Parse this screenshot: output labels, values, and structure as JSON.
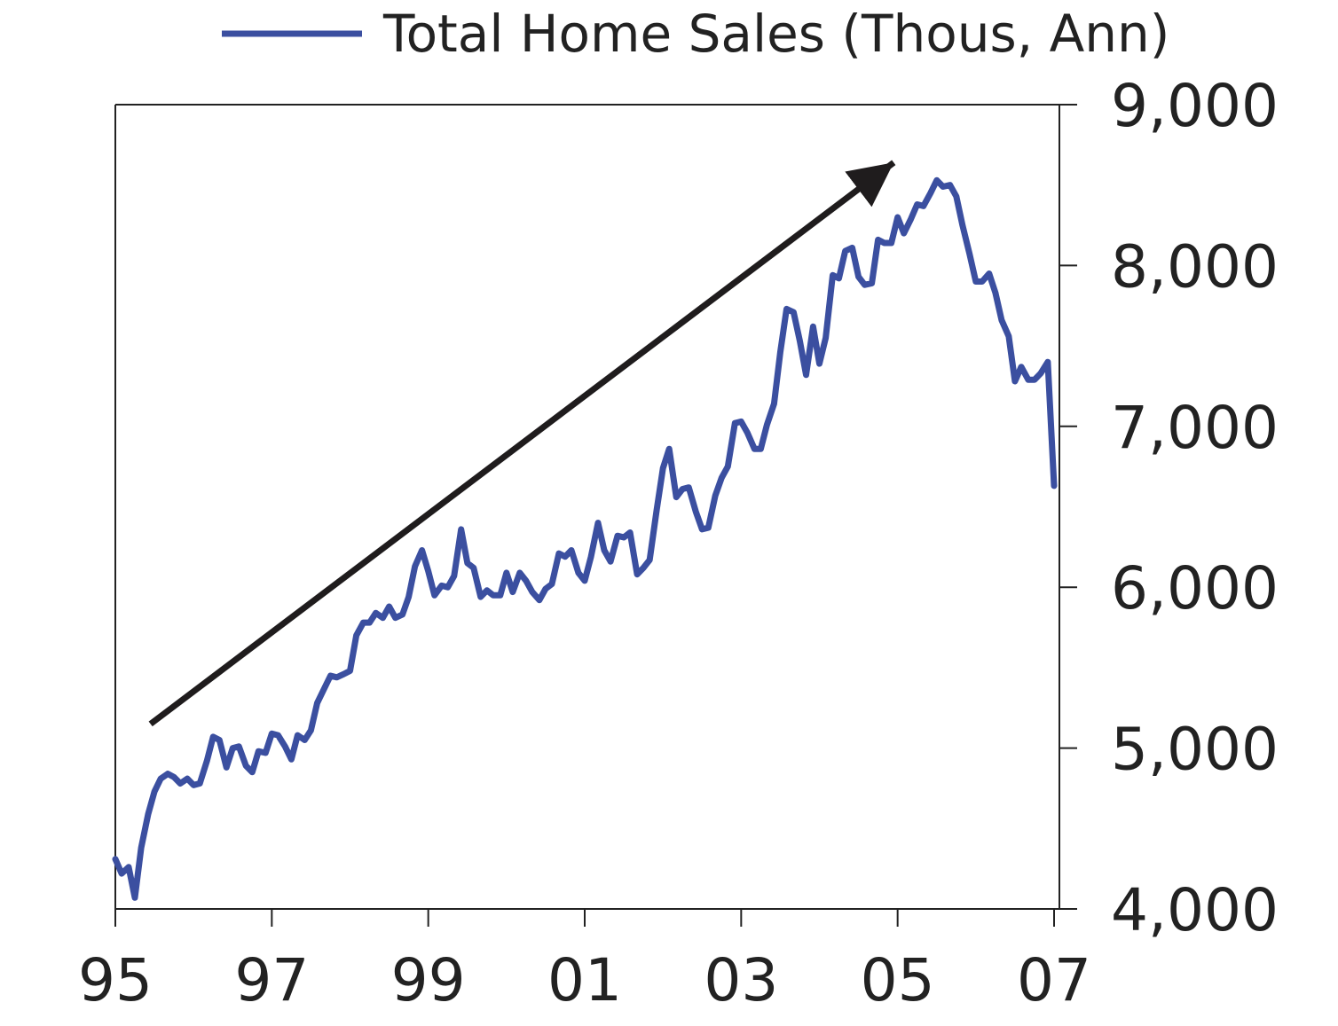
{
  "legend": {
    "label": "Total Home Sales (Thous, Ann)",
    "position": "top-center"
  },
  "colors": {
    "series": "#3b4fa0",
    "arrow": "#1f1c1d",
    "axis": "#222222",
    "text": "#222222"
  },
  "chart_data": {
    "type": "line",
    "title": "",
    "xlabel": "",
    "ylabel": "",
    "xlim": [
      1995.0,
      2007.0
    ],
    "ylim": [
      4000,
      9000
    ],
    "grid": false,
    "y_axis_side": "right",
    "x_ticks": [
      {
        "value": 1995,
        "label": "95"
      },
      {
        "value": 1997,
        "label": "97"
      },
      {
        "value": 1999,
        "label": "99"
      },
      {
        "value": 2001,
        "label": "01"
      },
      {
        "value": 2003,
        "label": "03"
      },
      {
        "value": 2005,
        "label": "05"
      },
      {
        "value": 2007,
        "label": "07"
      }
    ],
    "y_ticks": [
      {
        "value": 4000,
        "label": "4,000"
      },
      {
        "value": 5000,
        "label": "5,000"
      },
      {
        "value": 6000,
        "label": "6,000"
      },
      {
        "value": 7000,
        "label": "7,000"
      },
      {
        "value": 8000,
        "label": "8,000"
      },
      {
        "value": 9000,
        "label": "9,000"
      }
    ],
    "series": [
      {
        "name": "Total Home Sales (Thous, Ann)",
        "color": "#3b4fa0",
        "points": [
          [
            1995.0,
            4310
          ],
          [
            1995.08,
            4220
          ],
          [
            1995.17,
            4260
          ],
          [
            1995.25,
            4070
          ],
          [
            1995.33,
            4380
          ],
          [
            1995.42,
            4590
          ],
          [
            1995.5,
            4730
          ],
          [
            1995.58,
            4810
          ],
          [
            1995.67,
            4840
          ],
          [
            1995.75,
            4820
          ],
          [
            1995.83,
            4780
          ],
          [
            1995.92,
            4810
          ],
          [
            1996.0,
            4770
          ],
          [
            1996.08,
            4780
          ],
          [
            1996.17,
            4920
          ],
          [
            1996.25,
            5070
          ],
          [
            1996.33,
            5050
          ],
          [
            1996.42,
            4880
          ],
          [
            1996.5,
            5000
          ],
          [
            1996.58,
            5010
          ],
          [
            1996.67,
            4890
          ],
          [
            1996.75,
            4850
          ],
          [
            1996.83,
            4980
          ],
          [
            1996.92,
            4970
          ],
          [
            1997.0,
            5090
          ],
          [
            1997.08,
            5080
          ],
          [
            1997.17,
            5010
          ],
          [
            1997.25,
            4930
          ],
          [
            1997.33,
            5080
          ],
          [
            1997.42,
            5050
          ],
          [
            1997.5,
            5110
          ],
          [
            1997.58,
            5280
          ],
          [
            1997.67,
            5370
          ],
          [
            1997.75,
            5450
          ],
          [
            1997.83,
            5440
          ],
          [
            1997.92,
            5460
          ],
          [
            1998.0,
            5480
          ],
          [
            1998.08,
            5700
          ],
          [
            1998.17,
            5780
          ],
          [
            1998.25,
            5780
          ],
          [
            1998.33,
            5840
          ],
          [
            1998.42,
            5810
          ],
          [
            1998.5,
            5880
          ],
          [
            1998.58,
            5810
          ],
          [
            1998.67,
            5830
          ],
          [
            1998.75,
            5940
          ],
          [
            1998.83,
            6130
          ],
          [
            1998.92,
            6230
          ],
          [
            1999.0,
            6100
          ],
          [
            1999.08,
            5950
          ],
          [
            1999.17,
            6010
          ],
          [
            1999.25,
            6000
          ],
          [
            1999.33,
            6070
          ],
          [
            1999.42,
            6360
          ],
          [
            1999.5,
            6150
          ],
          [
            1999.58,
            6120
          ],
          [
            1999.67,
            5940
          ],
          [
            1999.75,
            5980
          ],
          [
            1999.83,
            5950
          ],
          [
            1999.92,
            5950
          ],
          [
            2000.0,
            6090
          ],
          [
            2000.08,
            5970
          ],
          [
            2000.17,
            6090
          ],
          [
            2000.25,
            6040
          ],
          [
            2000.33,
            5970
          ],
          [
            2000.42,
            5920
          ],
          [
            2000.5,
            5990
          ],
          [
            2000.58,
            6020
          ],
          [
            2000.67,
            6210
          ],
          [
            2000.75,
            6190
          ],
          [
            2000.83,
            6230
          ],
          [
            2000.92,
            6090
          ],
          [
            2001.0,
            6040
          ],
          [
            2001.08,
            6190
          ],
          [
            2001.17,
            6400
          ],
          [
            2001.25,
            6230
          ],
          [
            2001.33,
            6160
          ],
          [
            2001.42,
            6320
          ],
          [
            2001.5,
            6310
          ],
          [
            2001.58,
            6340
          ],
          [
            2001.67,
            6080
          ],
          [
            2001.75,
            6120
          ],
          [
            2001.83,
            6170
          ],
          [
            2001.92,
            6480
          ],
          [
            2002.0,
            6740
          ],
          [
            2002.08,
            6860
          ],
          [
            2002.17,
            6560
          ],
          [
            2002.25,
            6610
          ],
          [
            2002.33,
            6620
          ],
          [
            2002.42,
            6470
          ],
          [
            2002.5,
            6360
          ],
          [
            2002.58,
            6370
          ],
          [
            2002.67,
            6570
          ],
          [
            2002.75,
            6680
          ],
          [
            2002.83,
            6750
          ],
          [
            2002.92,
            7020
          ],
          [
            2003.0,
            7030
          ],
          [
            2003.08,
            6960
          ],
          [
            2003.17,
            6860
          ],
          [
            2003.25,
            6860
          ],
          [
            2003.33,
            7010
          ],
          [
            2003.42,
            7140
          ],
          [
            2003.5,
            7460
          ],
          [
            2003.58,
            7730
          ],
          [
            2003.67,
            7710
          ],
          [
            2003.75,
            7530
          ],
          [
            2003.83,
            7320
          ],
          [
            2003.92,
            7620
          ],
          [
            2004.0,
            7390
          ],
          [
            2004.08,
            7550
          ],
          [
            2004.17,
            7940
          ],
          [
            2004.25,
            7920
          ],
          [
            2004.33,
            8090
          ],
          [
            2004.42,
            8110
          ],
          [
            2004.5,
            7930
          ],
          [
            2004.58,
            7880
          ],
          [
            2004.67,
            7890
          ],
          [
            2004.75,
            8160
          ],
          [
            2004.83,
            8140
          ],
          [
            2004.92,
            8140
          ],
          [
            2005.0,
            8300
          ],
          [
            2005.08,
            8200
          ],
          [
            2005.17,
            8290
          ],
          [
            2005.25,
            8380
          ],
          [
            2005.33,
            8370
          ],
          [
            2005.42,
            8450
          ],
          [
            2005.5,
            8530
          ],
          [
            2005.58,
            8490
          ],
          [
            2005.67,
            8500
          ],
          [
            2005.75,
            8430
          ],
          [
            2005.83,
            8250
          ],
          [
            2005.92,
            8070
          ],
          [
            2006.0,
            7900
          ],
          [
            2006.08,
            7900
          ],
          [
            2006.17,
            7950
          ],
          [
            2006.25,
            7830
          ],
          [
            2006.33,
            7660
          ],
          [
            2006.42,
            7560
          ],
          [
            2006.5,
            7280
          ],
          [
            2006.58,
            7370
          ],
          [
            2006.67,
            7290
          ],
          [
            2006.75,
            7290
          ],
          [
            2006.83,
            7330
          ],
          [
            2006.92,
            7400
          ],
          [
            2007.0,
            6630
          ]
        ]
      }
    ],
    "annotations": [
      {
        "type": "arrow",
        "from": [
          1995.45,
          5150
        ],
        "to": [
          2004.95,
          8640
        ],
        "color": "#1f1c1d"
      }
    ]
  }
}
